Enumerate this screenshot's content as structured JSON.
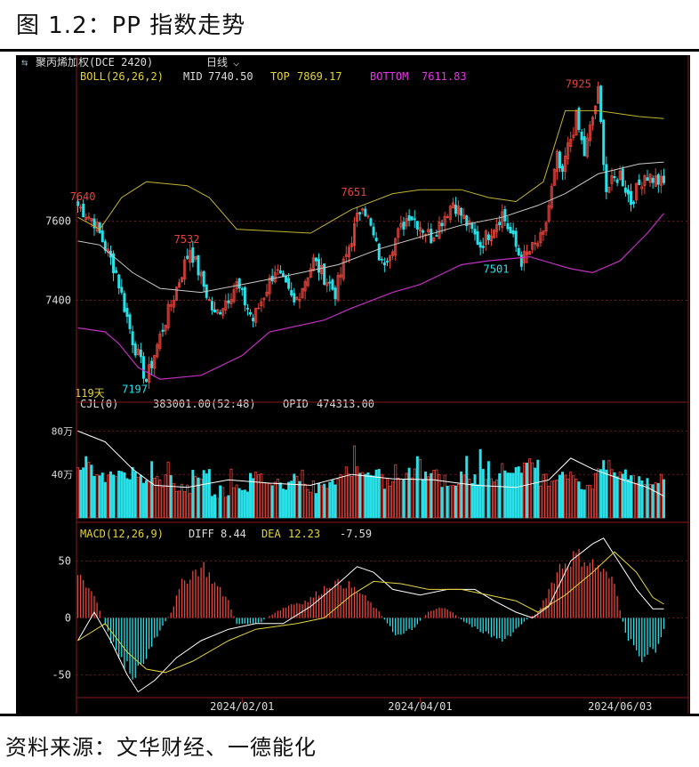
{
  "figure": {
    "title": "图 1.2：PP 指数走势",
    "source": "资料来源：文华财经、一德能化"
  },
  "header": {
    "name": "聚丙烯加权(DCE 2420)",
    "period": "日线",
    "chevron": "⌵"
  },
  "colors": {
    "up": "#e8453c",
    "down": "#29e1e8",
    "mid": "#c8c8c8",
    "top": "#c2b42f",
    "bottom": "#c22ec2",
    "grid": "#6b1a1a",
    "axis": "#8b1a1a",
    "label": "#dcdcdc",
    "peak": "#e8453c",
    "yellow": "#e3d43a",
    "magenta": "#e536e5"
  },
  "chart_data": [
    {
      "type": "candlestick",
      "indicator": {
        "name": "BOLL(26,26,2)",
        "mid_label": "MID",
        "mid": "7740.50",
        "top_label": "TOP",
        "top": "7869.17",
        "bottom_label": "BOTTOM",
        "bottom": "7611.83"
      },
      "ylim": [
        7160,
        7980
      ],
      "yticks": [
        7400,
        7600
      ],
      "annotations": [
        {
          "text": "7640",
          "i": 1,
          "value": 7640,
          "pos": "above"
        },
        {
          "text": "7532",
          "i": 39,
          "value": 7532,
          "pos": "above"
        },
        {
          "text": "7651",
          "i": 100,
          "value": 7651,
          "pos": "above"
        },
        {
          "text": "7501",
          "i": 152,
          "value": 7501,
          "pos": "below"
        },
        {
          "text": "7925",
          "i": 182,
          "value": 7925,
          "pos": "above"
        },
        {
          "text": "7197",
          "i": 20,
          "value": 7197,
          "pos": "below"
        }
      ],
      "day_count_label": "119天",
      "segments": [
        [
          7640,
          7600,
          7640,
          7600
        ],
        [
          7600,
          7470,
          7600,
          7470
        ],
        [
          7470,
          7300,
          7470,
          7300
        ],
        [
          7300,
          7197,
          7300,
          7197
        ],
        [
          7197,
          7330,
          7197,
          7330
        ],
        [
          7330,
          7532,
          7330,
          7532
        ],
        [
          7532,
          7360,
          7532,
          7360
        ],
        [
          7360,
          7440,
          7360,
          7440
        ],
        [
          7440,
          7350,
          7440,
          7350
        ],
        [
          7350,
          7480,
          7350,
          7480
        ],
        [
          7480,
          7390,
          7480,
          7390
        ],
        [
          7390,
          7500,
          7390,
          7500
        ],
        [
          7500,
          7420,
          7500,
          7420
        ],
        [
          7420,
          7651,
          7420,
          7651
        ],
        [
          7651,
          7490,
          7651,
          7490
        ],
        [
          7490,
          7620,
          7490,
          7620
        ],
        [
          7620,
          7560,
          7620,
          7560
        ],
        [
          7560,
          7650,
          7560,
          7650
        ],
        [
          7650,
          7540,
          7650,
          7540
        ],
        [
          7540,
          7620,
          7540,
          7620
        ],
        [
          7620,
          7501,
          7620,
          7501
        ],
        [
          7501,
          7560,
          7501,
          7560
        ],
        [
          7560,
          7760,
          7560,
          7760
        ],
        [
          7760,
          7680,
          7760,
          7680
        ],
        [
          7760,
          7860,
          7760,
          7860
        ],
        [
          7860,
          7770,
          7860,
          7770
        ],
        [
          7770,
          7925,
          7770,
          7925
        ],
        [
          7925,
          7680,
          7925,
          7680
        ],
        [
          7680,
          7720,
          7680,
          7720
        ],
        [
          7720,
          7650,
          7720,
          7650
        ],
        [
          7650,
          7720,
          7650,
          7720
        ],
        [
          7720,
          7690,
          7720,
          7690
        ]
      ],
      "segment_lengths": [
        6,
        8,
        6,
        5,
        6,
        10,
        9,
        8,
        6,
        8,
        7,
        7,
        8,
        10,
        7,
        10,
        8,
        8,
        10,
        8,
        7,
        8,
        5,
        3,
        4,
        3,
        5,
        3,
        5,
        4,
        5,
        8
      ],
      "boll": {
        "mid": [
          [
            0,
            7550
          ],
          [
            8,
            7540
          ],
          [
            20,
            7470
          ],
          [
            30,
            7430
          ],
          [
            45,
            7420
          ],
          [
            60,
            7440
          ],
          [
            75,
            7460
          ],
          [
            95,
            7490
          ],
          [
            110,
            7530
          ],
          [
            125,
            7560
          ],
          [
            140,
            7590
          ],
          [
            155,
            7610
          ],
          [
            168,
            7640
          ],
          [
            178,
            7670
          ],
          [
            190,
            7720
          ],
          [
            205,
            7745
          ],
          [
            214,
            7750
          ]
        ],
        "top": [
          [
            0,
            7610
          ],
          [
            8,
            7580
          ],
          [
            16,
            7660
          ],
          [
            25,
            7700
          ],
          [
            40,
            7690
          ],
          [
            48,
            7660
          ],
          [
            58,
            7580
          ],
          [
            85,
            7570
          ],
          [
            100,
            7630
          ],
          [
            115,
            7670
          ],
          [
            125,
            7680
          ],
          [
            140,
            7680
          ],
          [
            150,
            7660
          ],
          [
            160,
            7650
          ],
          [
            170,
            7700
          ],
          [
            178,
            7880
          ],
          [
            190,
            7880
          ],
          [
            205,
            7865
          ],
          [
            214,
            7860
          ]
        ],
        "bottom": [
          [
            0,
            7330
          ],
          [
            10,
            7320
          ],
          [
            15,
            7290
          ],
          [
            22,
            7230
          ],
          [
            30,
            7200
          ],
          [
            45,
            7210
          ],
          [
            60,
            7260
          ],
          [
            70,
            7320
          ],
          [
            90,
            7350
          ],
          [
            100,
            7380
          ],
          [
            115,
            7420
          ],
          [
            125,
            7440
          ],
          [
            140,
            7490
          ],
          [
            150,
            7500
          ],
          [
            165,
            7510
          ],
          [
            180,
            7480
          ],
          [
            188,
            7470
          ],
          [
            198,
            7500
          ],
          [
            208,
            7570
          ],
          [
            214,
            7620
          ]
        ]
      }
    },
    {
      "type": "bar",
      "indicator": {
        "name": "CJL(0)",
        "value": "383001.00(52:48)",
        "opid_label": "OPID",
        "opid": "474313.00"
      },
      "ylim": [
        0,
        100
      ],
      "yticks": [
        {
          "value": 40,
          "label": "40万"
        },
        {
          "value": 80,
          "label": "80万"
        }
      ],
      "values_base": [
        45,
        36,
        42,
        38,
        34,
        28,
        40,
        25,
        30,
        36,
        32,
        38,
        28,
        34,
        45,
        38,
        32,
        40,
        42,
        34,
        36,
        40,
        44,
        48,
        36,
        42,
        30,
        46,
        40,
        36,
        34,
        32
      ],
      "opid_line": [
        [
          0,
          80
        ],
        [
          10,
          70
        ],
        [
          20,
          45
        ],
        [
          28,
          30
        ],
        [
          40,
          28
        ],
        [
          55,
          35
        ],
        [
          70,
          32
        ],
        [
          85,
          30
        ],
        [
          100,
          40
        ],
        [
          115,
          36
        ],
        [
          130,
          35
        ],
        [
          145,
          30
        ],
        [
          160,
          28
        ],
        [
          172,
          35
        ],
        [
          180,
          55
        ],
        [
          188,
          45
        ],
        [
          198,
          36
        ],
        [
          208,
          28
        ],
        [
          214,
          20
        ]
      ]
    },
    {
      "type": "bar",
      "indicator": {
        "name": "MACD(12,26,9)",
        "diff_label": "DIFF",
        "diff": "8.44",
        "dea_label": "DEA",
        "dea": "12.23",
        "macd": "-7.59"
      },
      "ylim": [
        -70,
        80
      ],
      "yticks": [
        -50,
        0,
        50
      ],
      "xticks": [
        {
          "i": 60,
          "label": "2024/02/01"
        },
        {
          "i": 125,
          "label": "2024/04/01"
        },
        {
          "i": 198,
          "label": "2024/06/03"
        }
      ],
      "diff": [
        [
          0,
          -20
        ],
        [
          6,
          5
        ],
        [
          12,
          -20
        ],
        [
          18,
          -50
        ],
        [
          22,
          -65
        ],
        [
          28,
          -55
        ],
        [
          36,
          -35
        ],
        [
          45,
          -20
        ],
        [
          55,
          -10
        ],
        [
          65,
          -5
        ],
        [
          75,
          -5
        ],
        [
          85,
          10
        ],
        [
          95,
          30
        ],
        [
          102,
          45
        ],
        [
          108,
          40
        ],
        [
          115,
          25
        ],
        [
          125,
          20
        ],
        [
          135,
          25
        ],
        [
          145,
          25
        ],
        [
          152,
          15
        ],
        [
          160,
          5
        ],
        [
          166,
          0
        ],
        [
          172,
          10
        ],
        [
          180,
          50
        ],
        [
          188,
          65
        ],
        [
          192,
          70
        ],
        [
          196,
          55
        ],
        [
          204,
          25
        ],
        [
          210,
          8
        ],
        [
          214,
          8
        ]
      ],
      "dea": [
        [
          0,
          -20
        ],
        [
          10,
          -5
        ],
        [
          18,
          -30
        ],
        [
          25,
          -45
        ],
        [
          32,
          -48
        ],
        [
          42,
          -38
        ],
        [
          55,
          -20
        ],
        [
          65,
          -10
        ],
        [
          80,
          -5
        ],
        [
          90,
          0
        ],
        [
          100,
          20
        ],
        [
          108,
          32
        ],
        [
          118,
          30
        ],
        [
          128,
          25
        ],
        [
          140,
          25
        ],
        [
          150,
          20
        ],
        [
          160,
          15
        ],
        [
          168,
          5
        ],
        [
          178,
          20
        ],
        [
          188,
          40
        ],
        [
          196,
          58
        ],
        [
          204,
          40
        ],
        [
          210,
          18
        ],
        [
          214,
          12
        ]
      ],
      "hist": [
        [
          0,
          40
        ],
        [
          6,
          20
        ],
        [
          12,
          -20
        ],
        [
          16,
          -35
        ],
        [
          20,
          -50
        ],
        [
          24,
          -40
        ],
        [
          28,
          -20
        ],
        [
          34,
          5
        ],
        [
          38,
          30
        ],
        [
          42,
          40
        ],
        [
          46,
          45
        ],
        [
          50,
          30
        ],
        [
          55,
          15
        ],
        [
          58,
          -5
        ],
        [
          66,
          -5
        ],
        [
          72,
          5
        ],
        [
          78,
          12
        ],
        [
          84,
          15
        ],
        [
          92,
          30
        ],
        [
          98,
          30
        ],
        [
          104,
          20
        ],
        [
          110,
          5
        ],
        [
          116,
          -15
        ],
        [
          122,
          -10
        ],
        [
          128,
          5
        ],
        [
          134,
          10
        ],
        [
          142,
          -5
        ],
        [
          150,
          -15
        ],
        [
          156,
          -20
        ],
        [
          162,
          -5
        ],
        [
          168,
          5
        ],
        [
          176,
          45
        ],
        [
          182,
          55
        ],
        [
          190,
          45
        ],
        [
          196,
          30
        ],
        [
          200,
          -15
        ],
        [
          206,
          -35
        ],
        [
          212,
          -25
        ],
        [
          214,
          -10
        ]
      ]
    }
  ]
}
